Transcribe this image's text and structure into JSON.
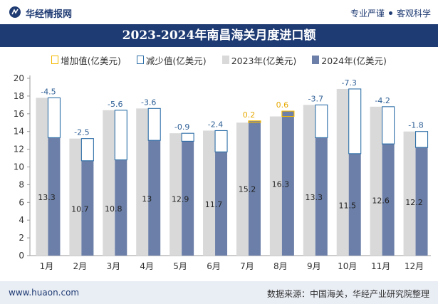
{
  "header": {
    "site_name": "华经情报网",
    "slogan_left": "专业严谨",
    "slogan_right": "客观科学"
  },
  "title": "2023-2024年南昌海关月度进口额",
  "legend": {
    "increase": "增加值(亿美元)",
    "decrease": "减少值(亿美元)",
    "y2023": "2023年(亿美元)",
    "y2024": "2024年(亿美元)"
  },
  "colors": {
    "brand": "#1f3b73",
    "bar2023": "#d9d9d9",
    "bar2024": "#6b7fa8",
    "increase": "#f5b800",
    "decrease": "#2e6fa8",
    "label_increase": "#e6a800",
    "label_decrease": "#2e5f96"
  },
  "chart_data": {
    "type": "bar",
    "categories": [
      "1月",
      "2月",
      "3月",
      "4月",
      "5月",
      "6月",
      "7月",
      "8月",
      "9月",
      "10月",
      "11月",
      "12月"
    ],
    "series": [
      {
        "name": "2023年(亿美元)",
        "values": [
          17.8,
          13.2,
          16.4,
          16.6,
          13.8,
          14.1,
          15.0,
          15.7,
          17.0,
          18.8,
          16.8,
          14.0
        ]
      },
      {
        "name": "2024年(亿美元)",
        "values": [
          13.3,
          10.7,
          10.8,
          13.0,
          12.9,
          11.7,
          15.2,
          16.3,
          13.3,
          11.5,
          12.6,
          12.2
        ]
      }
    ],
    "change": [
      -4.5,
      -2.5,
      -5.6,
      -3.6,
      -0.9,
      -2.4,
      0.2,
      0.6,
      -3.7,
      -7.3,
      -4.2,
      -1.8
    ],
    "value_labels": [
      "13.3",
      "10.7",
      "10.8",
      "13",
      "12.9",
      "11.7",
      "15.2",
      "16.3",
      "13.3",
      "11.5",
      "12.6",
      "12.2"
    ],
    "change_labels": [
      "-4.5",
      "-2.5",
      "-5.6",
      "-3.6",
      "-0.9",
      "-2.4",
      "0.2",
      "0.6",
      "-3.7",
      "-7.3",
      "-4.2",
      "-1.8"
    ],
    "ylim": [
      0,
      20
    ],
    "yticks": [
      "0",
      "2",
      "4",
      "6",
      "8",
      "10",
      "12",
      "14",
      "16",
      "18",
      "20"
    ],
    "grid": false,
    "legend_position": "top"
  },
  "footer": {
    "url": "www.huaon.com",
    "source": "数据来源：中国海关，华经产业研究院整理"
  }
}
